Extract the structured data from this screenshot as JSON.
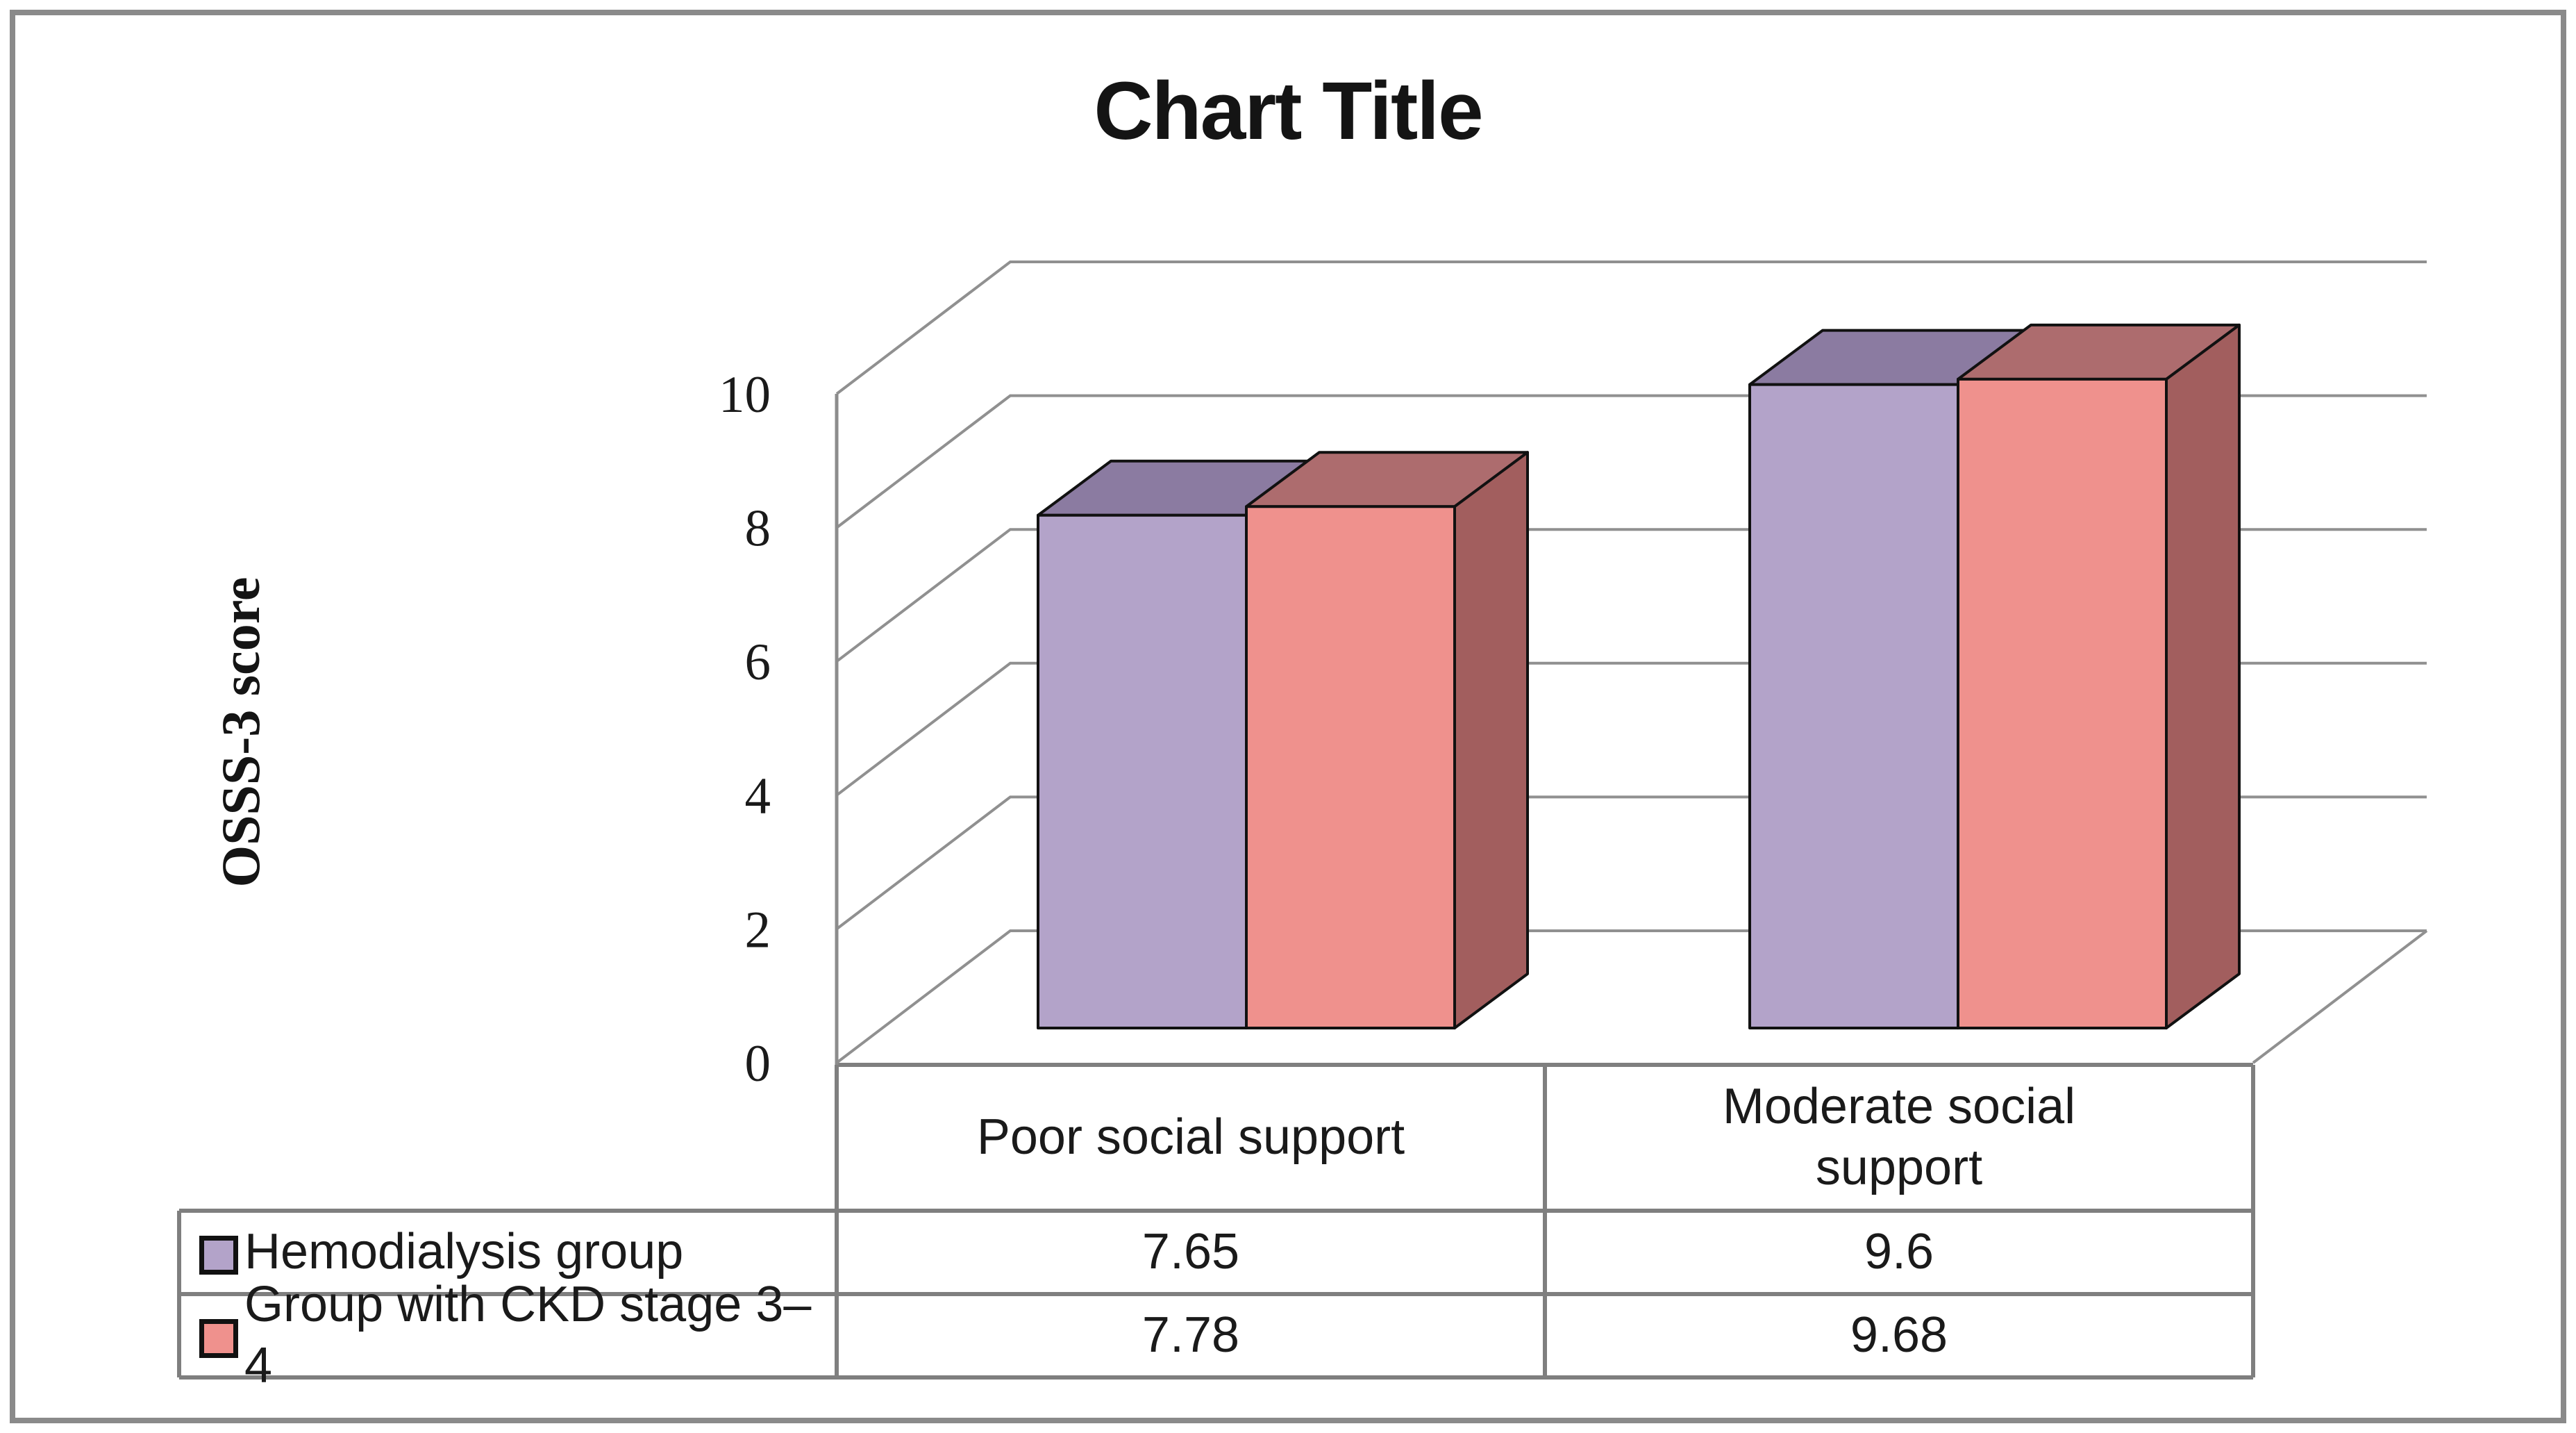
{
  "frame": {
    "border_color": "#8a8a8a"
  },
  "chart_data": {
    "type": "bar",
    "style": "3d-clustered-column",
    "title": "Chart Title",
    "xlabel": "",
    "ylabel": "OSSS-3 score",
    "ylim": [
      0,
      10
    ],
    "yticks": [
      0,
      2,
      4,
      6,
      8,
      10
    ],
    "grid": true,
    "legend_position": "data-table-left",
    "categories": [
      "Poor social support",
      "Moderate social support"
    ],
    "series": [
      {
        "name": "Hemodialysis group",
        "values": [
          7.65,
          9.6
        ],
        "color": "#b3a3c9",
        "color_top": "#8b7ba1",
        "color_side": "#796a8e"
      },
      {
        "name": "Group with CKD stage 3–4",
        "values": [
          7.78,
          9.68
        ],
        "color": "#ef918d",
        "color_top": "#ad6c6e",
        "color_side": "#a25e5e"
      }
    ],
    "grid_color": "#909090",
    "axis_color": "#8c8c8c",
    "table_border_color": "#7f7f7f",
    "bar_outline_color": "#111111",
    "tick_label_color": "#1a1a1a"
  }
}
